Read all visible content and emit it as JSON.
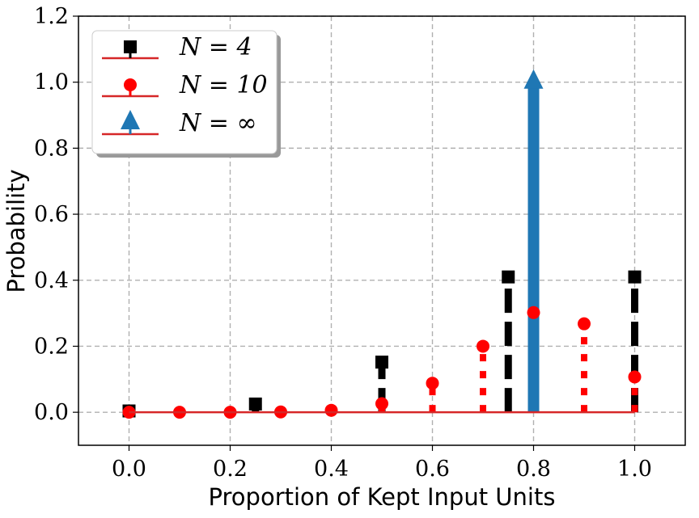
{
  "chart_data": {
    "type": "stem",
    "xlabel": "Proportion of Kept Input Units",
    "ylabel": "Probability",
    "xlim": [
      -0.1,
      1.1
    ],
    "ylim": [
      -0.1,
      1.2
    ],
    "xticks": [
      "0.0",
      "0.2",
      "0.4",
      "0.6",
      "0.8",
      "1.0"
    ],
    "yticks": [
      "0.0",
      "0.2",
      "0.4",
      "0.6",
      "0.8",
      "1.0",
      "1.2"
    ],
    "grid": true,
    "legend_position": "top-left",
    "baseline_color": "#d62728",
    "series": [
      {
        "name": "N = 4",
        "marker": "square",
        "color": "#000000",
        "linestyle": "dashed",
        "x": [
          0.0,
          0.25,
          0.5,
          0.75,
          1.0
        ],
        "y": [
          0.004,
          0.025,
          0.152,
          0.41,
          0.41
        ]
      },
      {
        "name": "N = 10",
        "marker": "circle",
        "color": "#ff0000",
        "linestyle": "dotted",
        "x": [
          0.0,
          0.1,
          0.2,
          0.3,
          0.4,
          0.5,
          0.6,
          0.7,
          0.8,
          0.9,
          1.0
        ],
        "y": [
          0.0,
          0.0,
          0.0,
          0.001,
          0.006,
          0.026,
          0.088,
          0.2,
          0.302,
          0.268,
          0.107
        ]
      },
      {
        "name": "N = ∞",
        "marker": "triangle",
        "color": "#1f77b4",
        "linestyle": "solid",
        "x": [
          0.8
        ],
        "y": [
          1.0
        ]
      }
    ]
  }
}
